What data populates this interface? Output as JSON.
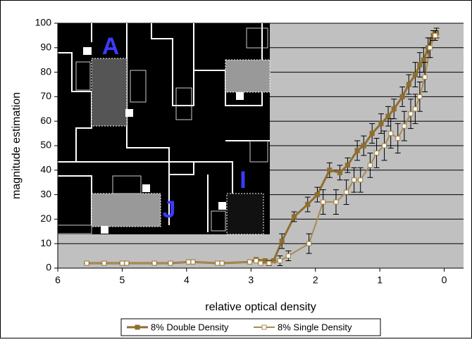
{
  "chart_data": {
    "type": "line",
    "x_label": "relative optical density",
    "y_label": "magnitude estimation",
    "xlim": [
      6,
      -0.3
    ],
    "xticks": [
      6,
      5,
      4,
      3,
      2,
      1,
      0
    ],
    "ylim": [
      0,
      100
    ],
    "yticks": [
      0,
      10,
      20,
      30,
      40,
      50,
      60,
      70,
      80,
      90,
      100
    ],
    "grid": true,
    "legend": "bottom",
    "inset_labels": [
      "A",
      "J",
      "I"
    ],
    "series": [
      {
        "name": "8% Double Density",
        "color": "#8f6e2e",
        "marker": "filled",
        "x": [
          5.55,
          5.28,
          5.0,
          4.93,
          4.5,
          4.25,
          3.97,
          3.9,
          3.52,
          3.45,
          3.02,
          2.92,
          2.78,
          2.65,
          2.52,
          2.33,
          2.12,
          1.97,
          1.78,
          1.62,
          1.5,
          1.35,
          1.25,
          1.12,
          0.98,
          0.87,
          0.78,
          0.65,
          0.55,
          0.45,
          0.38,
          0.32,
          0.25,
          0.17,
          0.12
        ],
        "values": [
          2,
          2,
          2,
          2,
          2,
          2,
          2.5,
          2.5,
          2,
          2,
          2.5,
          3.5,
          3,
          3,
          11,
          21,
          26,
          30,
          40,
          39,
          42,
          48,
          50,
          55,
          59,
          62,
          65,
          70,
          75,
          79,
          83,
          85,
          90,
          95,
          96
        ],
        "errors": [
          0,
          0,
          0,
          0,
          0,
          0,
          0,
          0,
          0,
          0,
          0,
          0,
          0,
          0,
          3,
          2,
          3,
          3,
          3,
          3,
          3,
          4,
          4,
          4,
          4,
          4,
          4,
          4,
          4,
          5,
          5,
          5,
          4,
          2,
          2
        ]
      },
      {
        "name": "8% Single Density",
        "color": "#a98b50",
        "marker": "hollow",
        "x": [
          5.55,
          5.28,
          5.0,
          4.93,
          4.5,
          4.25,
          3.97,
          3.9,
          3.52,
          3.45,
          3.02,
          2.92,
          2.85,
          2.72,
          2.55,
          2.42,
          2.1,
          1.88,
          1.68,
          1.52,
          1.4,
          1.3,
          1.15,
          1.05,
          0.93,
          0.83,
          0.72,
          0.62,
          0.52,
          0.45,
          0.38,
          0.3,
          0.22,
          0.14
        ],
        "values": [
          2,
          2,
          2,
          2,
          2,
          2,
          2.5,
          2.5,
          2,
          2,
          2.5,
          3,
          2,
          2,
          3,
          5,
          10,
          27,
          27,
          31,
          36,
          36,
          42,
          47,
          50,
          55,
          53,
          58,
          63,
          65,
          70,
          78,
          90,
          95
        ],
        "errors": [
          0,
          0,
          0,
          0,
          0,
          0,
          0,
          0,
          0,
          0,
          0,
          0,
          0,
          1,
          2,
          2,
          4,
          5,
          5,
          5,
          5,
          5,
          5,
          6,
          6,
          6,
          6,
          6,
          6,
          6,
          6,
          6,
          4,
          2
        ]
      }
    ]
  }
}
